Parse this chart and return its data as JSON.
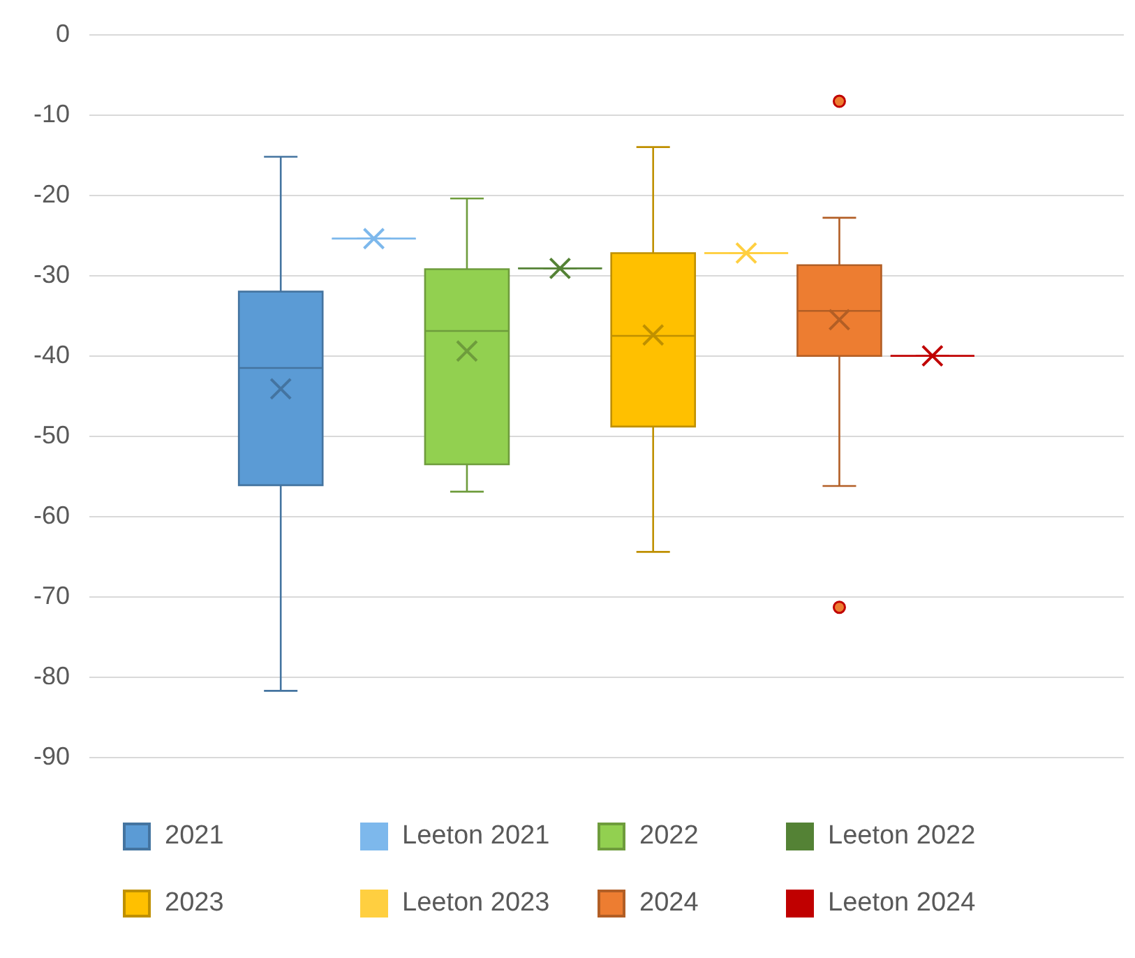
{
  "chart_data": {
    "type": "box",
    "categories": [
      null
    ],
    "ylim": [
      -90,
      0
    ],
    "yticks": [
      -90,
      -80,
      -70,
      -60,
      -50,
      -40,
      -30,
      -20,
      -10,
      0
    ],
    "grid": "y",
    "legend": "bottom",
    "marker": "cross",
    "series": [
      {
        "name": "2021",
        "color": "#5b9bd5",
        "boxes": [
          {
            "low": -81.7,
            "q1": -56.1,
            "median": -41.5,
            "q3": -32.0,
            "high": -15.2,
            "mean": -44.1
          }
        ]
      },
      {
        "name": "Leeton 2021",
        "color": "#7db8ec",
        "boxes": [
          {
            "low": -25.4,
            "q1": -25.4,
            "median": -25.4,
            "q3": -25.4,
            "high": -25.4,
            "mean": -25.4
          }
        ]
      },
      {
        "name": "2022",
        "color": "#92d050",
        "boxes": [
          {
            "low": -56.9,
            "q1": -53.5,
            "median": -36.9,
            "q3": -29.2,
            "high": -20.4,
            "mean": -39.4
          }
        ]
      },
      {
        "name": "Leeton 2022",
        "color": "#548235",
        "boxes": [
          {
            "low": -29.1,
            "q1": -29.1,
            "median": -29.1,
            "q3": -29.1,
            "high": -29.1,
            "mean": -29.1
          }
        ]
      },
      {
        "name": "2023",
        "color": "#ffc000",
        "boxes": [
          {
            "low": -64.4,
            "q1": -48.8,
            "median": -37.5,
            "q3": -27.2,
            "high": -14.0,
            "mean": -37.4
          }
        ]
      },
      {
        "name": "Leeton 2023",
        "color": "#ffcf40",
        "boxes": [
          {
            "low": -27.2,
            "q1": -27.2,
            "median": -27.2,
            "q3": -27.2,
            "high": -27.2,
            "mean": -27.2
          }
        ]
      },
      {
        "name": "2024",
        "color": "#ed7d31",
        "boxes": [
          {
            "low": -56.2,
            "q1": -40.0,
            "median": -34.4,
            "q3": -28.7,
            "high": -22.8,
            "mean": -35.5,
            "outliers": [
              -8.3,
              -71.3
            ]
          }
        ]
      },
      {
        "name": "Leeton 2024",
        "color": "#c00000",
        "boxes": [
          {
            "low": -40.0,
            "q1": -40.0,
            "median": -40.0,
            "q3": -40.0,
            "high": -40.0,
            "mean": -40.0
          }
        ]
      }
    ]
  }
}
